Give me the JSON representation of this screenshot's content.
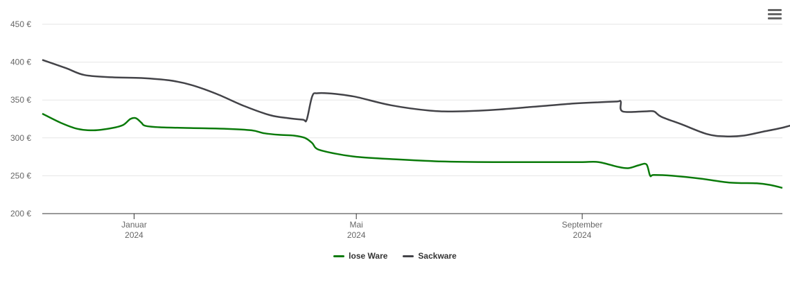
{
  "chart_data": {
    "type": "line",
    "title": "",
    "xlabel": "",
    "ylabel": "",
    "ylim": [
      200,
      450
    ],
    "y_ticks": [
      "200 €",
      "250 €",
      "300 €",
      "350 €",
      "400 €",
      "450 €"
    ],
    "y_tick_values": [
      200,
      250,
      300,
      350,
      400,
      450
    ],
    "x_ticks": [
      {
        "month": "Januar",
        "year": "2024",
        "date": "2024-01-01"
      },
      {
        "month": "Mai",
        "year": "2024",
        "date": "2024-05-01"
      },
      {
        "month": "September",
        "year": "2024",
        "date": "2024-09-01"
      }
    ],
    "xlim": [
      "2023-11-12",
      "2024-12-19"
    ],
    "grid": true,
    "legend_placement": "bottom-center",
    "series": [
      {
        "name": "lose Ware",
        "color": "#0a7a0a",
        "points": [
          [
            "2023-11-12",
            332
          ],
          [
            "2023-11-22",
            320
          ],
          [
            "2023-12-01",
            312
          ],
          [
            "2023-12-10",
            310
          ],
          [
            "2023-12-20",
            313
          ],
          [
            "2023-12-26",
            317
          ],
          [
            "2023-12-30",
            325
          ],
          [
            "2024-01-02",
            326
          ],
          [
            "2024-01-05",
            320
          ],
          [
            "2024-01-07",
            316
          ],
          [
            "2024-01-15",
            314
          ],
          [
            "2024-02-01",
            313
          ],
          [
            "2024-02-20",
            312
          ],
          [
            "2024-03-05",
            310
          ],
          [
            "2024-03-12",
            306
          ],
          [
            "2024-03-20",
            304
          ],
          [
            "2024-03-28",
            303
          ],
          [
            "2024-04-03",
            300
          ],
          [
            "2024-04-07",
            293
          ],
          [
            "2024-04-10",
            285
          ],
          [
            "2024-04-20",
            279
          ],
          [
            "2024-05-01",
            275
          ],
          [
            "2024-05-20",
            272
          ],
          [
            "2024-06-15",
            269
          ],
          [
            "2024-07-15",
            268
          ],
          [
            "2024-08-15",
            268
          ],
          [
            "2024-09-01",
            268
          ],
          [
            "2024-09-10",
            268
          ],
          [
            "2024-09-20",
            262
          ],
          [
            "2024-09-26",
            260
          ],
          [
            "2024-10-02",
            264
          ],
          [
            "2024-10-06",
            265
          ],
          [
            "2024-10-08",
            250
          ],
          [
            "2024-10-10",
            251
          ],
          [
            "2024-10-20",
            250
          ],
          [
            "2024-11-05",
            246
          ],
          [
            "2024-11-20",
            241
          ],
          [
            "2024-12-05",
            240
          ],
          [
            "2024-12-12",
            238
          ],
          [
            "2024-12-19",
            234
          ]
        ]
      },
      {
        "name": "Sackware",
        "color": "#434348",
        "points": [
          [
            "2023-11-12",
            403
          ],
          [
            "2023-11-25",
            392
          ],
          [
            "2023-12-05",
            383
          ],
          [
            "2023-12-20",
            380
          ],
          [
            "2024-01-05",
            379
          ],
          [
            "2024-01-20",
            376
          ],
          [
            "2024-02-01",
            370
          ],
          [
            "2024-02-15",
            358
          ],
          [
            "2024-03-01",
            342
          ],
          [
            "2024-03-15",
            330
          ],
          [
            "2024-03-25",
            326
          ],
          [
            "2024-04-02",
            324
          ],
          [
            "2024-04-04",
            324
          ],
          [
            "2024-04-07",
            355
          ],
          [
            "2024-04-10",
            359
          ],
          [
            "2024-04-20",
            358
          ],
          [
            "2024-05-01",
            354
          ],
          [
            "2024-05-20",
            343
          ],
          [
            "2024-06-10",
            336
          ],
          [
            "2024-06-25",
            335
          ],
          [
            "2024-07-15",
            337
          ],
          [
            "2024-08-05",
            341
          ],
          [
            "2024-08-25",
            345
          ],
          [
            "2024-09-10",
            347
          ],
          [
            "2024-09-20",
            348
          ],
          [
            "2024-09-22",
            348
          ],
          [
            "2024-09-23",
            335
          ],
          [
            "2024-10-05",
            335
          ],
          [
            "2024-10-10",
            335
          ],
          [
            "2024-10-14",
            328
          ],
          [
            "2024-10-25",
            318
          ],
          [
            "2024-11-08",
            305
          ],
          [
            "2024-11-18",
            302
          ],
          [
            "2024-11-28",
            303
          ],
          [
            "2024-12-08",
            308
          ],
          [
            "2024-12-20",
            314
          ],
          [
            "2025-01-01",
            323
          ],
          [
            "2025-01-08",
            330
          ]
        ]
      }
    ]
  },
  "icons": {
    "menu": "hamburger-menu-icon"
  }
}
